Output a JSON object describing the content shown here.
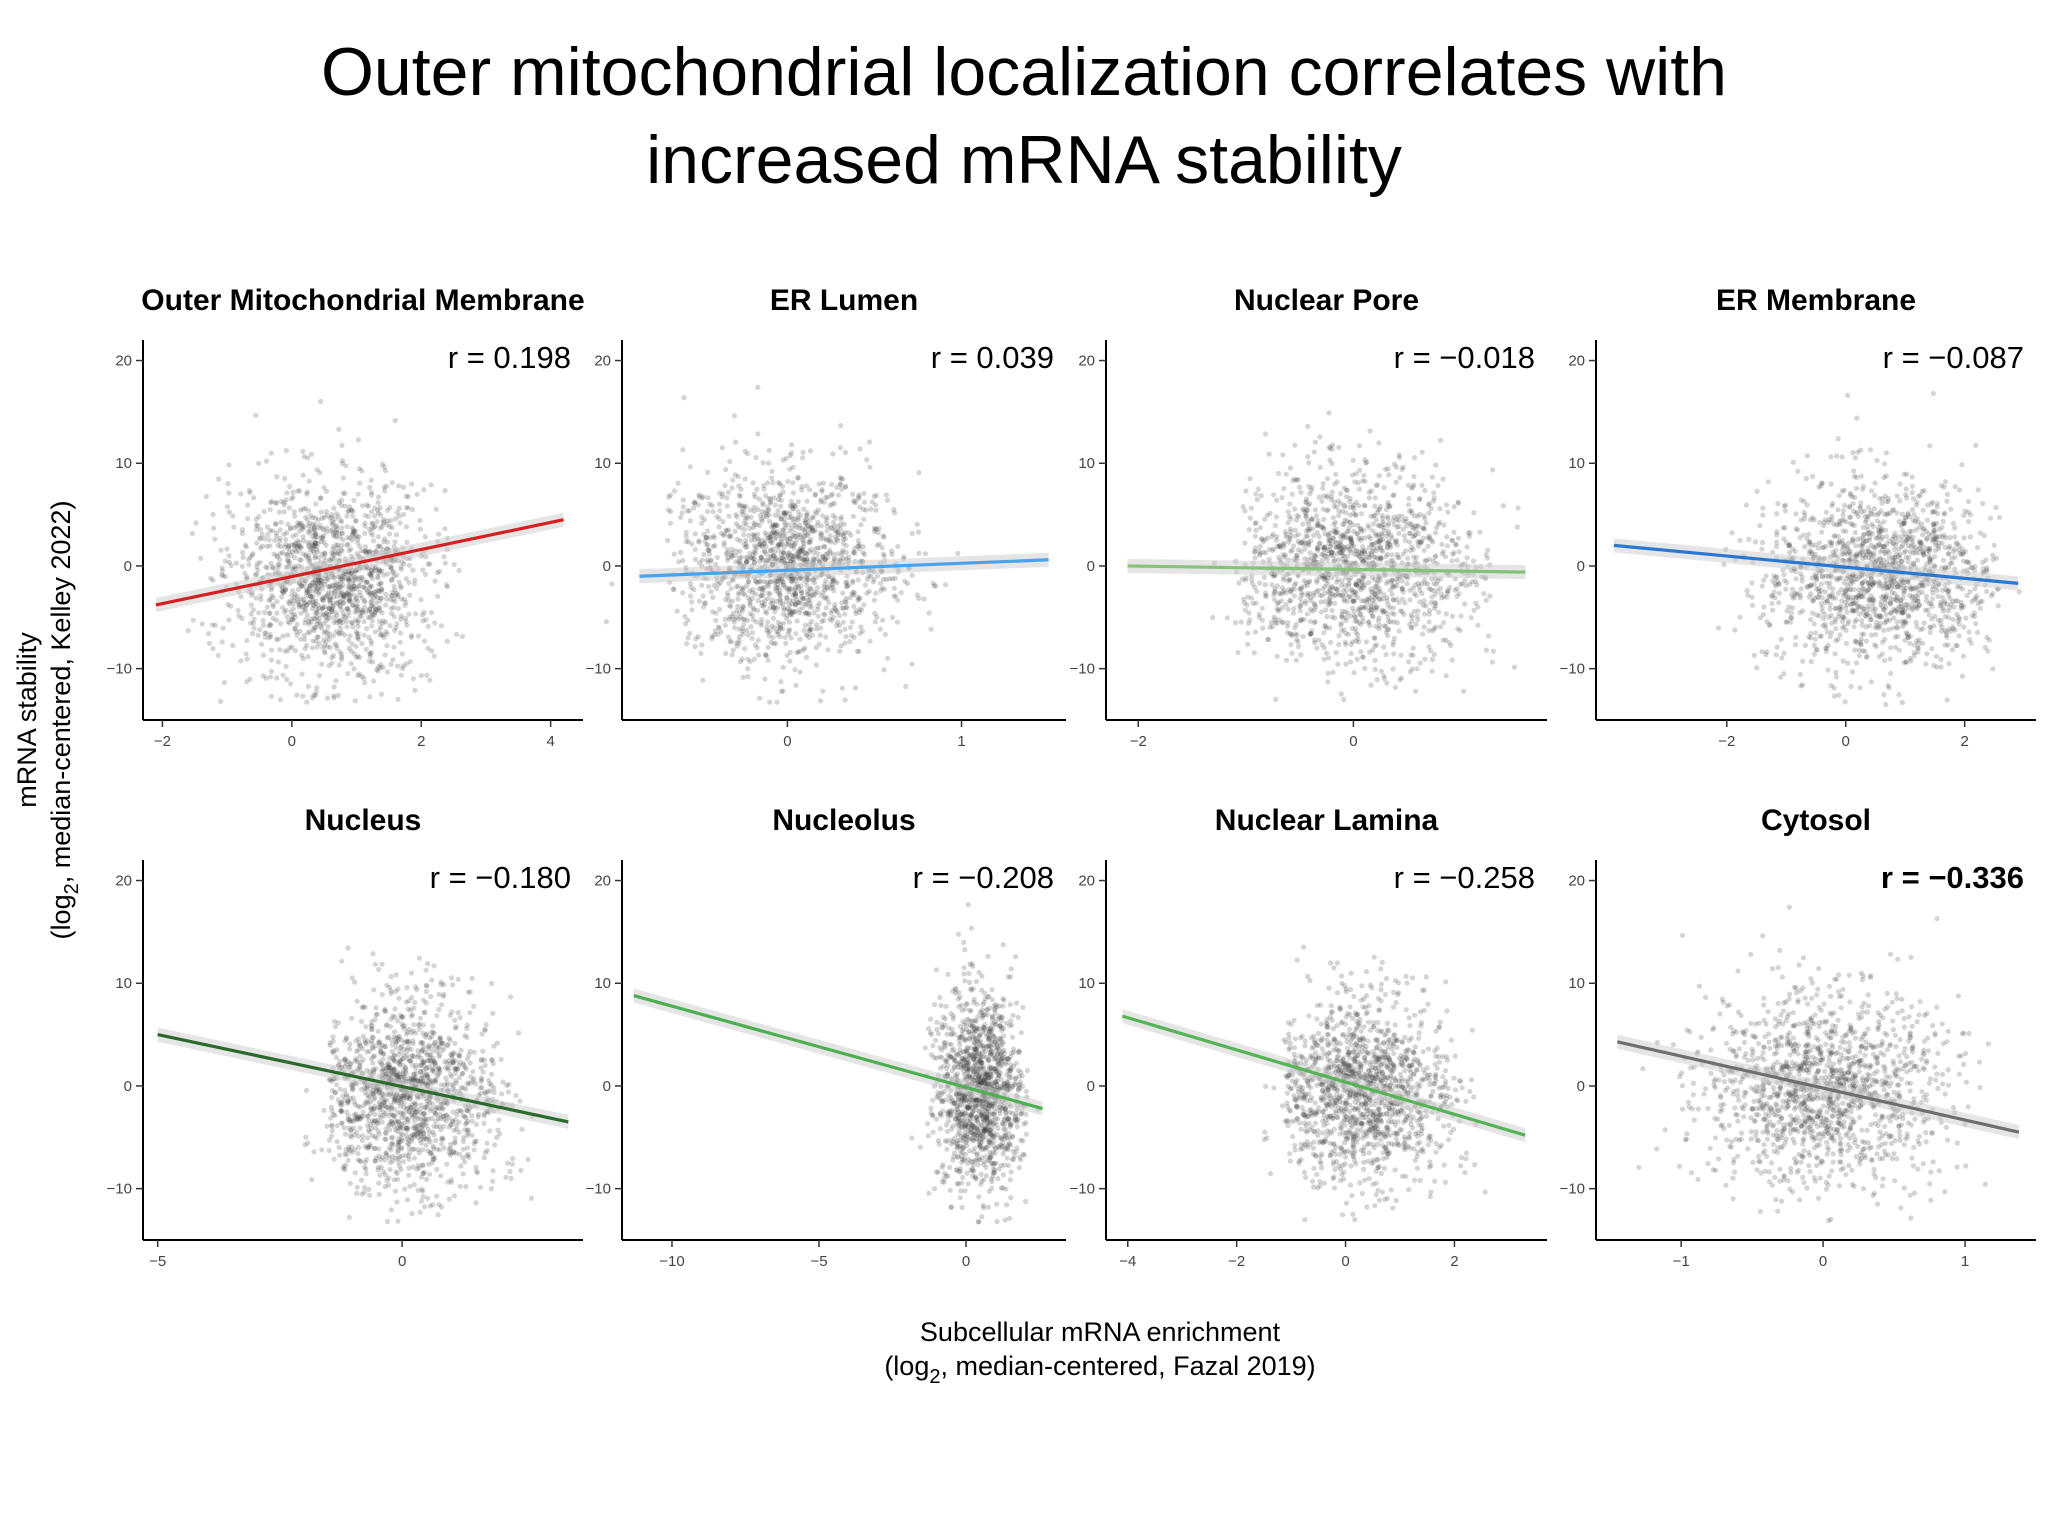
{
  "title": {
    "line1": "Outer mitochondrial localization correlates with",
    "line2": "increased mRNA stability"
  },
  "xlabel": {
    "line1": "Subcellular mRNA enrichment",
    "line2_pre": "(log",
    "line2_sub": "2",
    "line2_post": ", median-centered, Fazal 2019)"
  },
  "ylabel": {
    "line1": "mRNA stability",
    "line2_pre": "(log",
    "line2_sub": "2",
    "line2_post": ", median-centered, Kelley 2022)"
  },
  "colors": {
    "points": "#3a3a3a",
    "red": "#d42020",
    "light_blue": "#4aa3ea",
    "light_green": "#86c279",
    "blue": "#2a78d4",
    "dark_green": "#2a6a2a",
    "green": "#4caf50",
    "mid_green": "#55b455",
    "gray": "#6e6e6e"
  },
  "chart_data": [
    {
      "type": "scatter",
      "title": "Outer Mitochondrial Membrane",
      "r_label": "r = 0.198",
      "bold_r": false,
      "xlim": [
        -2.3,
        4.5
      ],
      "ylim": [
        -15,
        22
      ],
      "xticks": [
        -2,
        0,
        2,
        4
      ],
      "yticks": [
        20,
        10,
        0,
        -10
      ],
      "fit": {
        "x": [
          -2.1,
          4.2
        ],
        "y": [
          -3.8,
          4.5
        ]
      },
      "line_color": "#d42020",
      "cloud": {
        "cx": 0.6,
        "cy": -1.5,
        "sx": 0.75,
        "sy": 4.6,
        "n": 1400,
        "xmin": -1.6,
        "xmax": 2.8
      }
    },
    {
      "type": "scatter",
      "title": "ER Lumen",
      "r_label": "r = 0.039",
      "bold_r": false,
      "xlim": [
        -0.95,
        1.6
      ],
      "ylim": [
        -15,
        22
      ],
      "xticks": [
        0,
        1
      ],
      "yticks": [
        20,
        10,
        0,
        -10
      ],
      "fit": {
        "x": [
          -0.85,
          1.5
        ],
        "y": [
          -1.0,
          0.6
        ]
      },
      "line_color": "#4aa3ea",
      "cloud": {
        "cx": 0.0,
        "cy": 0.0,
        "sx": 0.3,
        "sy": 4.6,
        "n": 1400,
        "xmin": -0.7,
        "xmax": 1.4
      }
    },
    {
      "type": "scatter",
      "title": "Nuclear Pore",
      "r_label": "r = −0.018",
      "bold_r": false,
      "xlim": [
        -2.3,
        1.8
      ],
      "ylim": [
        -15,
        22
      ],
      "xticks": [
        -2,
        0
      ],
      "yticks": [
        20,
        10,
        0,
        -10
      ],
      "fit": {
        "x": [
          -2.1,
          1.6
        ],
        "y": [
          0.0,
          -0.6
        ]
      },
      "line_color": "#86c279",
      "cloud": {
        "cx": 0.0,
        "cy": -0.3,
        "sx": 0.55,
        "sy": 4.6,
        "n": 1400,
        "xmin": -1.1,
        "xmax": 1.6
      }
    },
    {
      "type": "scatter",
      "title": "ER Membrane",
      "r_label": "r = −0.087",
      "bold_r": false,
      "xlim": [
        -4.2,
        3.2
      ],
      "ylim": [
        -15,
        22
      ],
      "xticks": [
        -2,
        0,
        2
      ],
      "yticks": [
        20,
        10,
        0,
        -10
      ],
      "fit": {
        "x": [
          -3.9,
          2.9
        ],
        "y": [
          2.0,
          -1.7
        ]
      },
      "line_color": "#2a78d4",
      "cloud": {
        "cx": 0.6,
        "cy": -0.8,
        "sx": 1.0,
        "sy": 4.6,
        "n": 1400,
        "xmin": -2.2,
        "xmax": 2.6
      }
    },
    {
      "type": "scatter",
      "title": "Nucleus",
      "r_label": "r = −0.180",
      "bold_r": false,
      "xlim": [
        -5.3,
        3.7
      ],
      "ylim": [
        -15,
        22
      ],
      "xticks": [
        -5,
        0
      ],
      "yticks": [
        20,
        10,
        0,
        -10
      ],
      "fit": {
        "x": [
          -5,
          3.4
        ],
        "y": [
          5.0,
          -3.5
        ]
      },
      "line_color": "#2a6a2a",
      "cloud": {
        "cx": 0.1,
        "cy": -1.0,
        "sx": 0.9,
        "sy": 4.6,
        "n": 1400,
        "xmin": -1.5,
        "xmax": 2.8
      }
    },
    {
      "type": "scatter",
      "title": "Nucleolus",
      "r_label": "r = −0.208",
      "bold_r": false,
      "xlim": [
        -11.7,
        3.4
      ],
      "ylim": [
        -15,
        22
      ],
      "xticks": [
        -10,
        -5,
        0
      ],
      "yticks": [
        20,
        10,
        0,
        -10
      ],
      "fit": {
        "x": [
          -11.3,
          2.6
        ],
        "y": [
          8.8,
          -2.2
        ]
      },
      "line_color": "#4caf50",
      "cloud": {
        "cx": 0.5,
        "cy": -0.5,
        "sx": 0.75,
        "sy": 4.8,
        "n": 1300,
        "xmin": -1.9,
        "xmax": 2.1
      }
    },
    {
      "type": "scatter",
      "title": "Nuclear Lamina",
      "r_label": "r = −0.258",
      "bold_r": false,
      "xlim": [
        -4.4,
        3.7
      ],
      "ylim": [
        -15,
        22
      ],
      "xticks": [
        -4,
        -2,
        0,
        2
      ],
      "yticks": [
        20,
        10,
        0,
        -10
      ],
      "fit": {
        "x": [
          -4.1,
          3.3
        ],
        "y": [
          6.8,
          -4.8
        ]
      },
      "line_color": "#55b455",
      "cloud": {
        "cx": 0.3,
        "cy": -0.6,
        "sx": 0.8,
        "sy": 4.5,
        "n": 1400,
        "xmin": -1.1,
        "xmax": 2.6
      }
    },
    {
      "type": "scatter",
      "title": "Cytosol",
      "r_label": "r = −0.336",
      "bold_r": true,
      "xlim": [
        -1.6,
        1.5
      ],
      "ylim": [
        -15,
        22
      ],
      "xticks": [
        -1,
        0,
        1
      ],
      "yticks": [
        20,
        10,
        0,
        -10
      ],
      "fit": {
        "x": [
          -1.45,
          1.38
        ],
        "y": [
          4.3,
          -4.5
        ]
      },
      "line_color": "#6e6e6e",
      "cloud": {
        "cx": 0.0,
        "cy": 0.0,
        "sx": 0.42,
        "sy": 4.6,
        "n": 1400,
        "xmin": -1.3,
        "xmax": 1.2
      }
    }
  ]
}
